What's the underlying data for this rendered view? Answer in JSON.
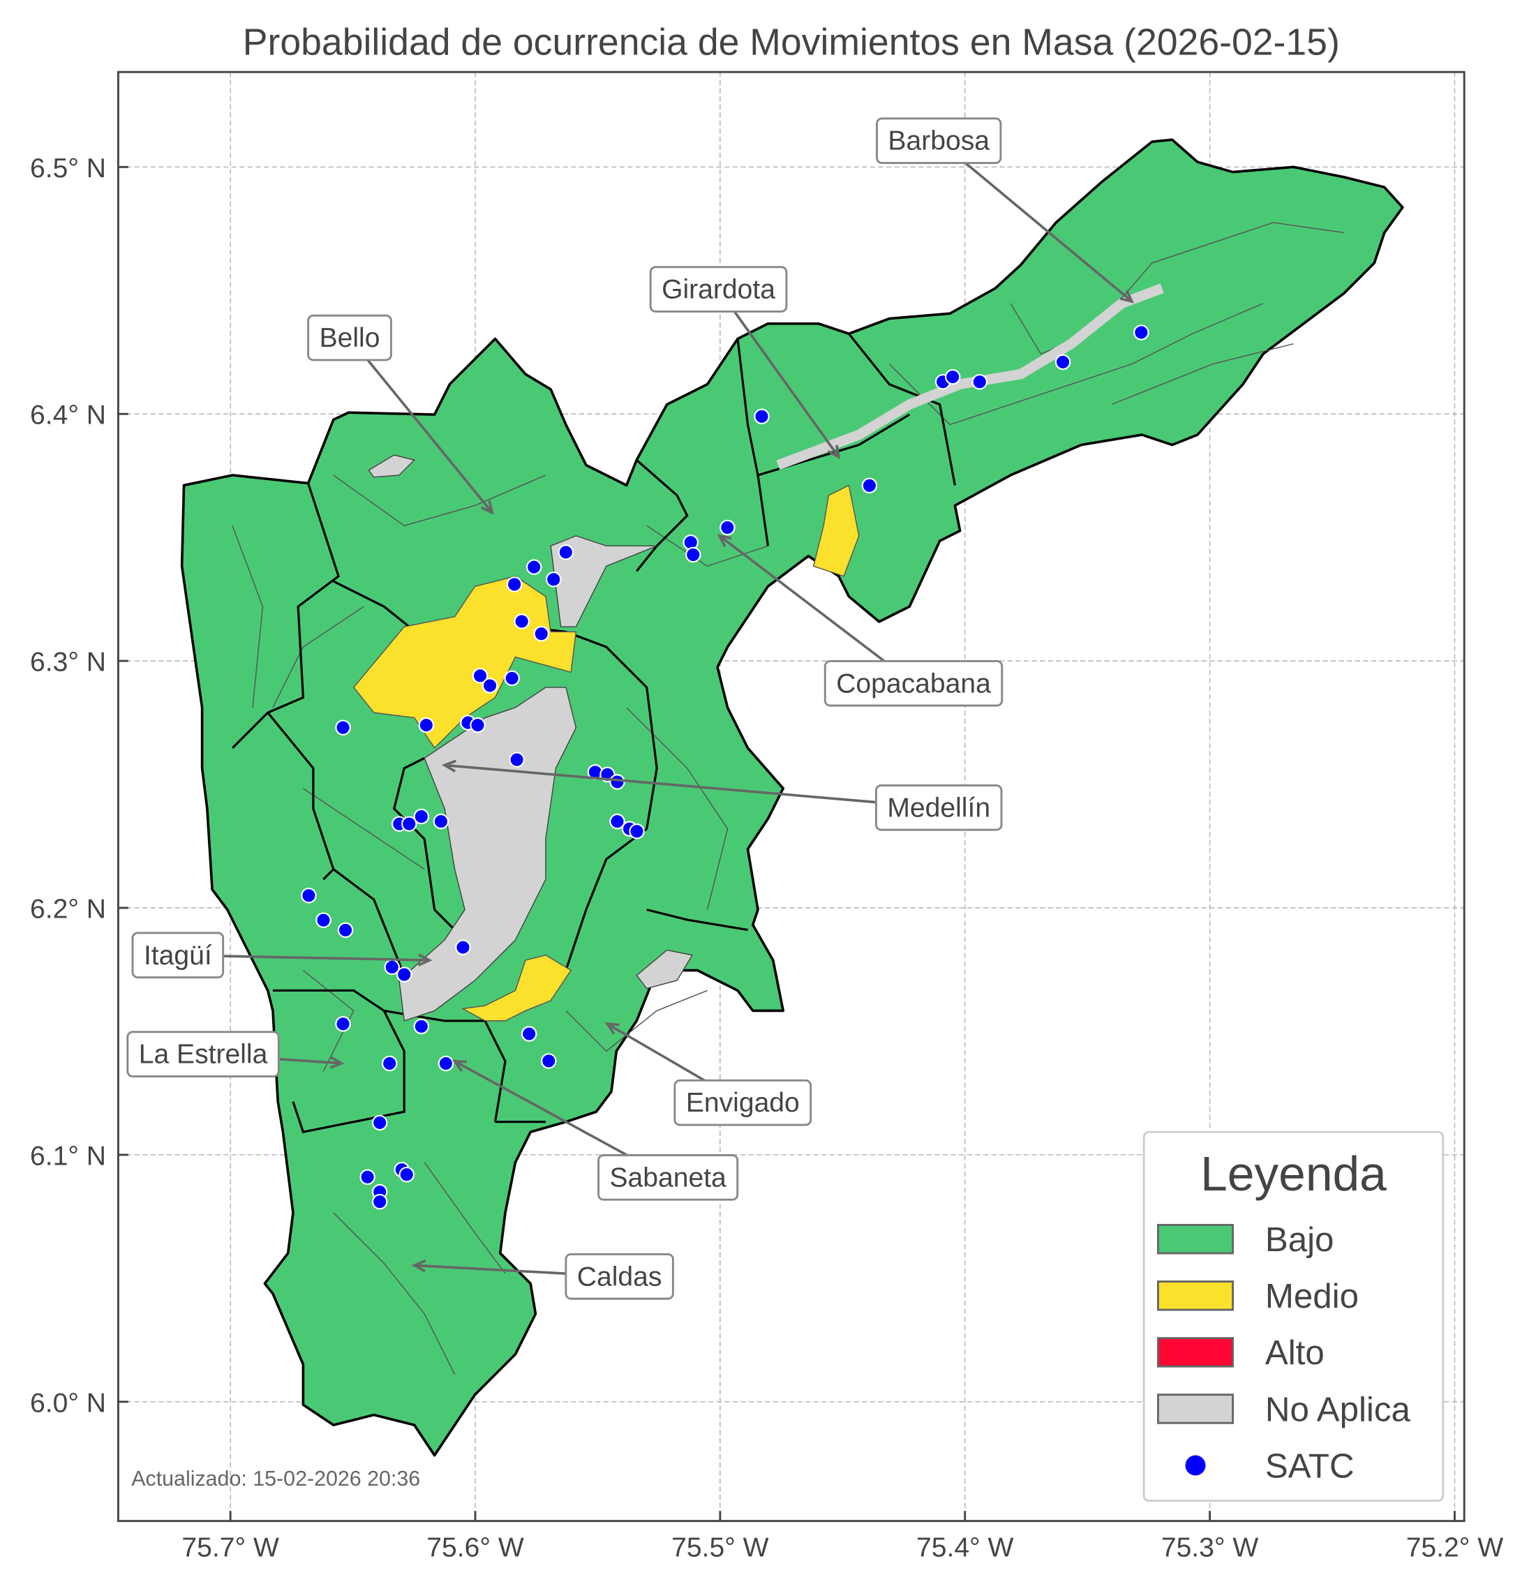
{
  "title": "Probabilidad de ocurrencia de Movimientos en Masa (2026-02-15)",
  "x_ticks": [
    "75.7° W",
    "75.6° W",
    "75.5° W",
    "75.4° W",
    "75.3° W",
    "75.2° W"
  ],
  "y_ticks": [
    "6.5° N",
    "6.4° N",
    "6.3° N",
    "6.2° N",
    "6.1° N",
    "6.0° N"
  ],
  "x_tick_values": [
    -75.7,
    -75.6,
    -75.5,
    -75.4,
    -75.3,
    -75.2
  ],
  "y_tick_values": [
    6.5,
    6.4,
    6.3,
    6.2,
    6.1,
    6.0
  ],
  "lon_range": [
    -75.746,
    -75.196
  ],
  "lat_range": [
    5.955,
    6.542
  ],
  "grid": true,
  "municipalities": [
    "Barbosa",
    "Girardota",
    "Bello",
    "Copacabana",
    "Medellín",
    "Itagüí",
    "La Estrella",
    "Envigado",
    "Sabaneta",
    "Caldas"
  ],
  "legend": {
    "title": "Leyenda",
    "placement": "bottom-right",
    "items": [
      {
        "label": "Bajo",
        "color": "#4ac975"
      },
      {
        "label": "Medio",
        "color": "#fbe12b"
      },
      {
        "label": "Alto",
        "color": "#fe0534"
      },
      {
        "label": "No Aplica",
        "color": "#d3d3d3"
      },
      {
        "label": "SATC",
        "color": "#0000ff"
      }
    ]
  },
  "footer": "Actualizado: 15-02-2026 20:36",
  "satc_points": [
    [
      -75.483,
      6.399
    ],
    [
      -75.409,
      6.413
    ],
    [
      -75.405,
      6.415
    ],
    [
      -75.394,
      6.413
    ],
    [
      -75.36,
      6.421
    ],
    [
      -75.328,
      6.433
    ],
    [
      -75.439,
      6.371
    ],
    [
      -75.497,
      6.354
    ],
    [
      -75.512,
      6.348
    ],
    [
      -75.511,
      6.343
    ],
    [
      -75.563,
      6.344
    ],
    [
      -75.576,
      6.338
    ],
    [
      -75.568,
      6.333
    ],
    [
      -75.584,
      6.331
    ],
    [
      -75.581,
      6.316
    ],
    [
      -75.573,
      6.311
    ],
    [
      -75.598,
      6.294
    ],
    [
      -75.594,
      6.29
    ],
    [
      -75.585,
      6.293
    ],
    [
      -75.654,
      6.273
    ],
    [
      -75.62,
      6.274
    ],
    [
      -75.603,
      6.275
    ],
    [
      -75.599,
      6.274
    ],
    [
      -75.583,
      6.26
    ],
    [
      -75.551,
      6.255
    ],
    [
      -75.546,
      6.254
    ],
    [
      -75.542,
      6.251
    ],
    [
      -75.542,
      6.235
    ],
    [
      -75.537,
      6.232
    ],
    [
      -75.534,
      6.231
    ],
    [
      -75.622,
      6.237
    ],
    [
      -75.631,
      6.234
    ],
    [
      -75.627,
      6.234
    ],
    [
      -75.614,
      6.235
    ],
    [
      -75.668,
      6.205
    ],
    [
      -75.662,
      6.195
    ],
    [
      -75.653,
      6.191
    ],
    [
      -75.634,
      6.176
    ],
    [
      -75.629,
      6.173
    ],
    [
      -75.605,
      6.184
    ],
    [
      -75.654,
      6.153
    ],
    [
      -75.622,
      6.152
    ],
    [
      -75.578,
      6.149
    ],
    [
      -75.57,
      6.138
    ],
    [
      -75.612,
      6.137
    ],
    [
      -75.635,
      6.137
    ],
    [
      -75.639,
      6.113
    ],
    [
      -75.644,
      6.091
    ],
    [
      -75.639,
      6.085
    ],
    [
      -75.639,
      6.081
    ],
    [
      -75.63,
      6.094
    ],
    [
      -75.628,
      6.092
    ]
  ]
}
